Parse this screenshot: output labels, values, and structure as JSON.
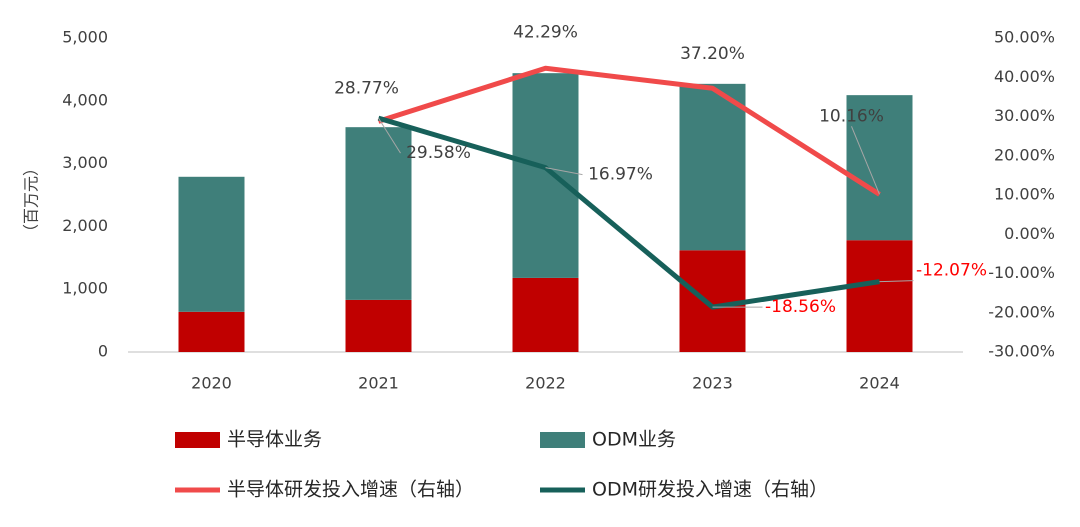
{
  "chart_data": {
    "type": "bar",
    "y_label": "（百万元）",
    "categories": [
      "2020",
      "2021",
      "2022",
      "2023",
      "2024"
    ],
    "series": [
      {
        "name": "半导体业务",
        "type": "bar",
        "color": "#c00000",
        "values": [
          640,
          830,
          1180,
          1620,
          1780
        ]
      },
      {
        "name": "ODM业务",
        "type": "bar",
        "color": "#3f7f7a",
        "values": [
          2150,
          2750,
          3260,
          2650,
          2310
        ]
      },
      {
        "name": "半导体研发投入增速（右轴）",
        "type": "line",
        "axis": "y2",
        "color": "#f04a4a",
        "values": [
          null,
          28.77,
          42.29,
          37.2,
          10.16
        ],
        "value_labels": [
          null,
          "28.77%",
          "42.29%",
          "37.20%",
          "10.16%"
        ]
      },
      {
        "name": "ODM研发投入增速（右轴）",
        "type": "line",
        "axis": "y2",
        "color": "#17605a",
        "values": [
          null,
          29.58,
          16.97,
          -18.56,
          -12.07
        ],
        "value_labels": [
          null,
          "29.58%",
          "16.97%",
          "-18.56%",
          "-12.07%"
        ]
      }
    ],
    "ylim": [
      0,
      5000
    ],
    "yticks": [
      0,
      {
        "value": 1000,
        "label": "1,000"
      },
      {
        "value": 2000,
        "label": "2,000"
      },
      {
        "value": 3000,
        "label": "3,000"
      },
      {
        "value": 4000,
        "label": "4,000"
      },
      {
        "value": 5000,
        "label": "5,000"
      }
    ],
    "y2lim": [
      -30,
      50
    ],
    "y2ticks": [
      {
        "value": -30,
        "label": "-30.00%"
      },
      {
        "value": -20,
        "label": "-20.00%"
      },
      {
        "value": -10,
        "label": "-10.00%"
      },
      {
        "value": 0,
        "label": "0.00%"
      },
      {
        "value": 10,
        "label": "10.00%"
      },
      {
        "value": 20,
        "label": "20.00%"
      },
      {
        "value": 30,
        "label": "30.00%"
      },
      {
        "value": 40,
        "label": "40.00%"
      },
      {
        "value": 50,
        "label": "50.00%"
      }
    ]
  }
}
